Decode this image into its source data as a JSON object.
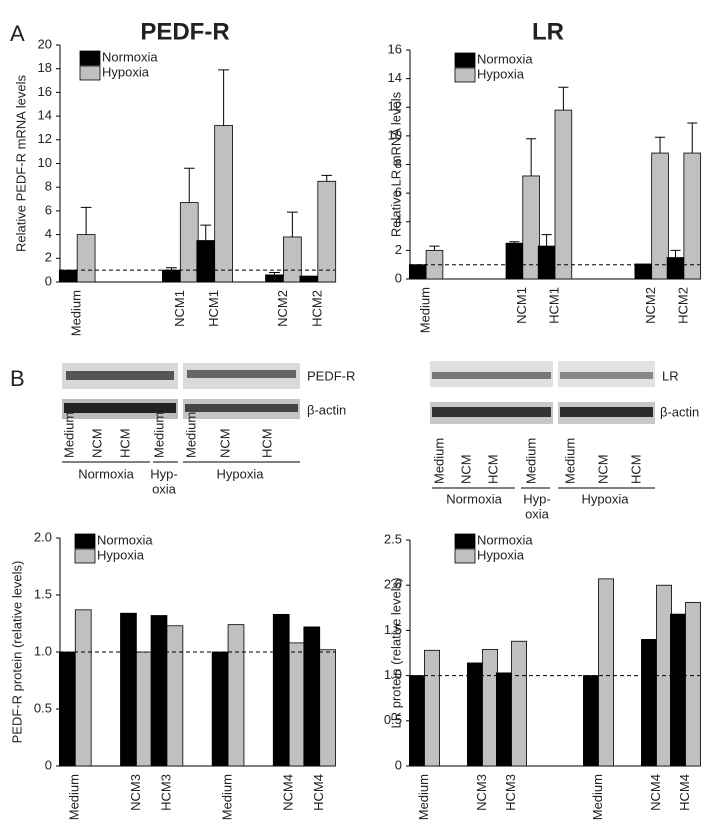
{
  "panels": [
    "A",
    "B"
  ],
  "chart_data": [
    {
      "type": "bar",
      "title": "PEDF-R",
      "ylabel": "Relative  PEDF-R mRNA levels",
      "ylim": [
        0,
        20
      ],
      "yticks": [
        0,
        2,
        4,
        6,
        8,
        10,
        12,
        14,
        16,
        18,
        20
      ],
      "reference_line": 1,
      "categories": [
        "Medium",
        null,
        null,
        "NCM1",
        "HCM1",
        null,
        "NCM2",
        "HCM2"
      ],
      "series": [
        {
          "name": "Normoxia",
          "color": "#000000",
          "values": [
            1.0,
            null,
            null,
            1.0,
            3.5,
            null,
            0.6,
            0.5
          ],
          "errors": [
            null,
            null,
            null,
            0.2,
            1.3,
            null,
            0.2,
            null
          ]
        },
        {
          "name": "Hypoxia",
          "color": "#c0c0c0",
          "values": [
            4.0,
            null,
            null,
            6.7,
            13.2,
            null,
            3.8,
            8.5
          ],
          "errors": [
            2.3,
            null,
            null,
            2.9,
            4.7,
            null,
            2.1,
            0.5
          ]
        }
      ]
    },
    {
      "type": "bar",
      "title": "LR",
      "ylabel": "Relative LR  mRNA levels",
      "ylim": [
        0,
        16
      ],
      "yticks": [
        0,
        2,
        4,
        6,
        8,
        10,
        12,
        14,
        16
      ],
      "reference_line": 1,
      "categories": [
        "Medium",
        null,
        null,
        "NCM1",
        "HCM1",
        null,
        null,
        "NCM2",
        "HCM2"
      ],
      "series": [
        {
          "name": "Normoxia",
          "color": "#000000",
          "values": [
            1.0,
            null,
            null,
            2.5,
            2.3,
            null,
            null,
            1.05,
            1.5
          ],
          "errors": [
            null,
            null,
            null,
            0.1,
            0.8,
            null,
            null,
            null,
            0.5
          ]
        },
        {
          "name": "Hypoxia",
          "color": "#c0c0c0",
          "values": [
            2.0,
            null,
            null,
            7.2,
            11.8,
            null,
            null,
            8.8,
            8.8
          ],
          "errors": [
            0.3,
            null,
            null,
            2.6,
            1.6,
            null,
            null,
            1.1,
            2.1
          ]
        }
      ]
    },
    {
      "type": "bar",
      "ylabel": "PEDF-R protein (relative levels)",
      "ylim": [
        0,
        2
      ],
      "yticks": [
        0,
        0.5,
        {
          "value": 1,
          "label": "1.0"
        },
        1.5,
        {
          "value": 2,
          "label": "2.0"
        }
      ],
      "reference_line": 1,
      "categories": [
        "Medium",
        null,
        "NCM3",
        "HCM3",
        null,
        "Medium",
        null,
        "NCM4",
        "HCM4"
      ],
      "series": [
        {
          "name": "Normoxia",
          "color": "#000000",
          "values": [
            1.0,
            null,
            1.34,
            1.32,
            null,
            1.0,
            null,
            1.33,
            1.22
          ]
        },
        {
          "name": "Hypoxia",
          "color": "#c0c0c0",
          "values": [
            1.37,
            null,
            1.0,
            1.23,
            null,
            1.24,
            null,
            1.08,
            1.02
          ]
        }
      ]
    },
    {
      "type": "bar",
      "ylabel": "LR protein (relative levels)",
      "ylim": [
        0,
        2.5
      ],
      "yticks": [
        0,
        0.5,
        {
          "value": 1,
          "label": "1.0"
        },
        1.5,
        {
          "value": 2,
          "label": "2.0"
        },
        2.5
      ],
      "reference_line": 1,
      "categories": [
        "Medium",
        null,
        "NCM3",
        "HCM3",
        null,
        null,
        "Medium",
        null,
        "NCM4",
        "HCM4"
      ],
      "series": [
        {
          "name": "Normoxia",
          "color": "#000000",
          "values": [
            1.0,
            null,
            1.14,
            1.03,
            null,
            null,
            1.0,
            null,
            1.4,
            1.68
          ]
        },
        {
          "name": "Hypoxia",
          "color": "#c0c0c0",
          "values": [
            1.28,
            null,
            1.29,
            1.38,
            null,
            null,
            2.07,
            null,
            2.0,
            1.81
          ]
        }
      ]
    }
  ],
  "blots": [
    {
      "label": "PEDF-R",
      "loading_label": "β-actin",
      "lanes": [
        "Medium",
        "NCM",
        "HCM",
        "Medium",
        "Medium",
        "NCM",
        "HCM"
      ],
      "groups": [
        [
          "Normoxia"
        ],
        [
          "Hyp-",
          "oxia"
        ],
        [
          "Hypoxia"
        ]
      ]
    },
    {
      "label": "LR",
      "loading_label": "β-actin",
      "lanes": [
        "Medium",
        "NCM",
        "HCM",
        "Medium",
        "Medium",
        "NCM",
        "HCM"
      ],
      "groups": [
        [
          "Normoxia"
        ],
        [
          "Hyp-",
          "oxia"
        ],
        [
          "Hypoxia"
        ]
      ]
    }
  ]
}
